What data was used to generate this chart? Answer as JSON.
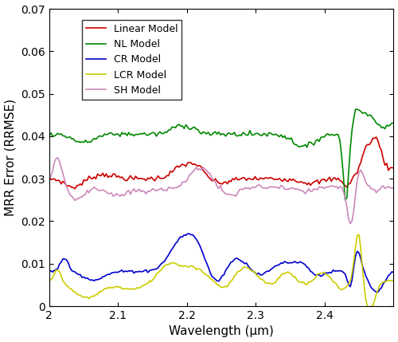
{
  "title": "",
  "xlabel": "Wavelength (μm)",
  "ylabel": "MRR Error (RRMSE)",
  "xlim": [
    2.0,
    2.5
  ],
  "ylim": [
    0,
    0.07
  ],
  "yticks": [
    0,
    0.01,
    0.02,
    0.03,
    0.04,
    0.05,
    0.06,
    0.07
  ],
  "xticks": [
    2.0,
    2.1,
    2.2,
    2.3,
    2.4
  ],
  "legend_labels": [
    "Linear Model",
    "NL Model",
    "CR Model",
    "LCR Model",
    "SH Model"
  ],
  "colors": {
    "linear": "#cc0000",
    "nl": "#008800",
    "cr": "#0000cc",
    "lcr": "#cccc00",
    "sh": "#cc88bb"
  },
  "linewidth": 1.2,
  "figsize": [
    5.0,
    4.29
  ],
  "dpi": 100
}
